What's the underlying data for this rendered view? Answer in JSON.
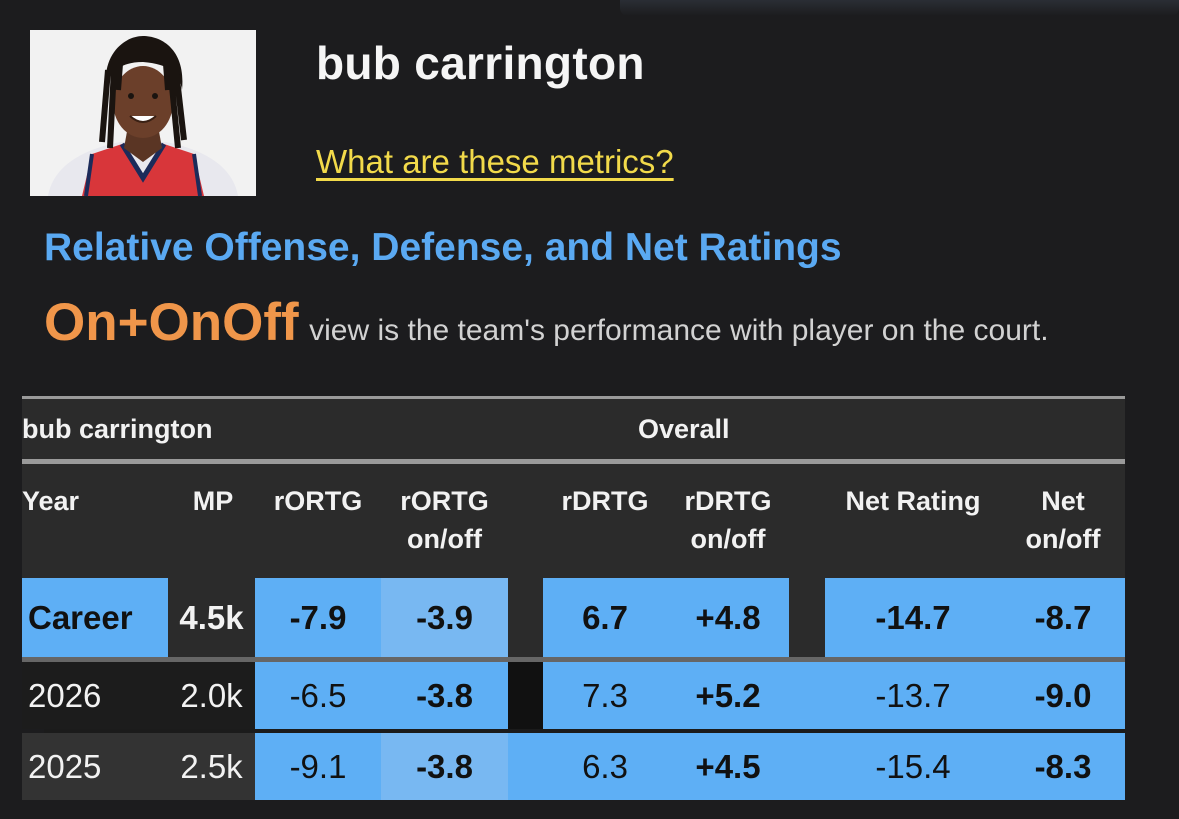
{
  "player": {
    "name": "bub carrington",
    "metrics_link": "What are these metrics?"
  },
  "section_title": "Relative Offense, Defense, and Net Ratings",
  "view": {
    "name": "On+OnOff",
    "description": "view is the team's performance with player on the court."
  },
  "table": {
    "group_player": "bub carrington",
    "group_overall": "Overall",
    "headers": {
      "year": "Year",
      "mp": "MP",
      "rortg": "rORTG",
      "rortg_onoff_1": "rORTG",
      "rortg_onoff_2": "on/off",
      "rdrtg": "rDRTG",
      "rdrtg_onoff_1": "rDRTG",
      "rdrtg_onoff_2": "on/off",
      "net": "Net Rating",
      "net_onoff_1": "Net",
      "net_onoff_2": "on/off"
    },
    "rows": [
      {
        "year": "Career",
        "mp": "4.5k",
        "rortg": "-7.9",
        "rortg_onoff": "-3.9",
        "rdrtg": "6.7",
        "rdrtg_onoff": "+4.8",
        "net": "-14.7",
        "net_onoff": "-8.7"
      },
      {
        "year": "2026",
        "mp": "2.0k",
        "rortg": "-6.5",
        "rortg_onoff": "-3.8",
        "rdrtg": "7.3",
        "rdrtg_onoff": "+5.2",
        "net": "-13.7",
        "net_onoff": "-9.0"
      },
      {
        "year": "2025",
        "mp": "2.5k",
        "rortg": "-9.1",
        "rortg_onoff": "-3.8",
        "rdrtg": "6.3",
        "rdrtg_onoff": "+4.5",
        "net": "-15.4",
        "net_onoff": "-8.3"
      }
    ]
  },
  "colors": {
    "background": "#1c1c1e",
    "title_blue": "#5aa9f2",
    "view_orange": "#f0964a",
    "link_yellow": "#f2da4a",
    "cell_blue": "#5eaff5"
  }
}
